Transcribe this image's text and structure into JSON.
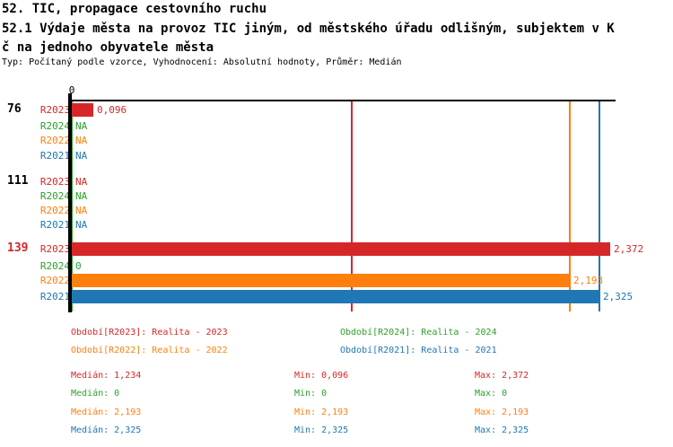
{
  "header": {
    "line1": "52. TIC, propagace cestovního ruchu",
    "line2": "52.1 Výdaje města na provoz TIC jiným, od městského úřadu odlišným, subjektem v K",
    "line3": "č na jednoho obyvatele města",
    "subtitle": "Typ: Počítaný podle vzorce, Vyhodnocení: Absolutní hodnoty, Průměr: Medián"
  },
  "chart_data": {
    "type": "bar",
    "orientation": "horizontal",
    "value_axis": {
      "zero_tick_label": "0",
      "min": 0,
      "max": 2.4,
      "grid": false
    },
    "series_colors": {
      "R2023": "#d62728",
      "R2024": "#2ca02c",
      "R2022": "#ff7f0e",
      "R2021": "#1f77b4"
    },
    "groups": [
      {
        "label": "76",
        "label_color": "#000000",
        "rows": [
          {
            "series": "R2023",
            "value": 0.096,
            "display": "0,096"
          },
          {
            "series": "R2024",
            "value": null,
            "display": "NA"
          },
          {
            "series": "R2022",
            "value": null,
            "display": "NA"
          },
          {
            "series": "R2021",
            "value": null,
            "display": "NA"
          }
        ]
      },
      {
        "label": "111",
        "label_color": "#000000",
        "rows": [
          {
            "series": "R2023",
            "value": null,
            "display": "NA"
          },
          {
            "series": "R2024",
            "value": null,
            "display": "NA"
          },
          {
            "series": "R2022",
            "value": null,
            "display": "NA"
          },
          {
            "series": "R2021",
            "value": null,
            "display": "NA"
          }
        ]
      },
      {
        "label": "139",
        "label_color": "#d62728",
        "rows": [
          {
            "series": "R2023",
            "value": 2.372,
            "display": "2,372"
          },
          {
            "series": "R2024",
            "value": 0,
            "display": "0"
          },
          {
            "series": "R2022",
            "value": 2.193,
            "display": "2,193"
          },
          {
            "series": "R2021",
            "value": 2.325,
            "display": "2,325"
          }
        ]
      }
    ],
    "median_lines": [
      {
        "series": "R2023",
        "value": 1.234,
        "color": "#d62728"
      },
      {
        "series": "R2024",
        "value": 0,
        "color": "#2ca02c"
      },
      {
        "series": "R2022",
        "value": 2.193,
        "color": "#ff7f0e"
      },
      {
        "series": "R2021",
        "value": 2.325,
        "color": "#1f77b4"
      }
    ]
  },
  "legend": {
    "items": [
      {
        "series": "R2023",
        "text": "Období[R2023]: Realita - 2023",
        "color": "#d62728"
      },
      {
        "series": "R2024",
        "text": "Období[R2024]: Realita - 2024",
        "color": "#2ca02c"
      },
      {
        "series": "R2022",
        "text": "Období[R2022]: Realita - 2022",
        "color": "#ff7f0e"
      },
      {
        "series": "R2021",
        "text": "Období[R2021]: Realita - 2021",
        "color": "#1f77b4"
      }
    ]
  },
  "stats": {
    "rows": [
      {
        "series": "R2023",
        "color": "#d62728",
        "median": "Medián: 1,234",
        "min": "Min: 0,096",
        "max": "Max: 2,372"
      },
      {
        "series": "R2024",
        "color": "#2ca02c",
        "median": "Medián: 0",
        "min": "Min: 0",
        "max": "Max: 0"
      },
      {
        "series": "R2022",
        "color": "#ff7f0e",
        "median": "Medián: 2,193",
        "min": "Min: 2,193",
        "max": "Max: 2,193"
      },
      {
        "series": "R2021",
        "color": "#1f77b4",
        "median": "Medián: 2,325",
        "min": "Min: 2,325",
        "max": "Max: 2,325"
      }
    ]
  }
}
